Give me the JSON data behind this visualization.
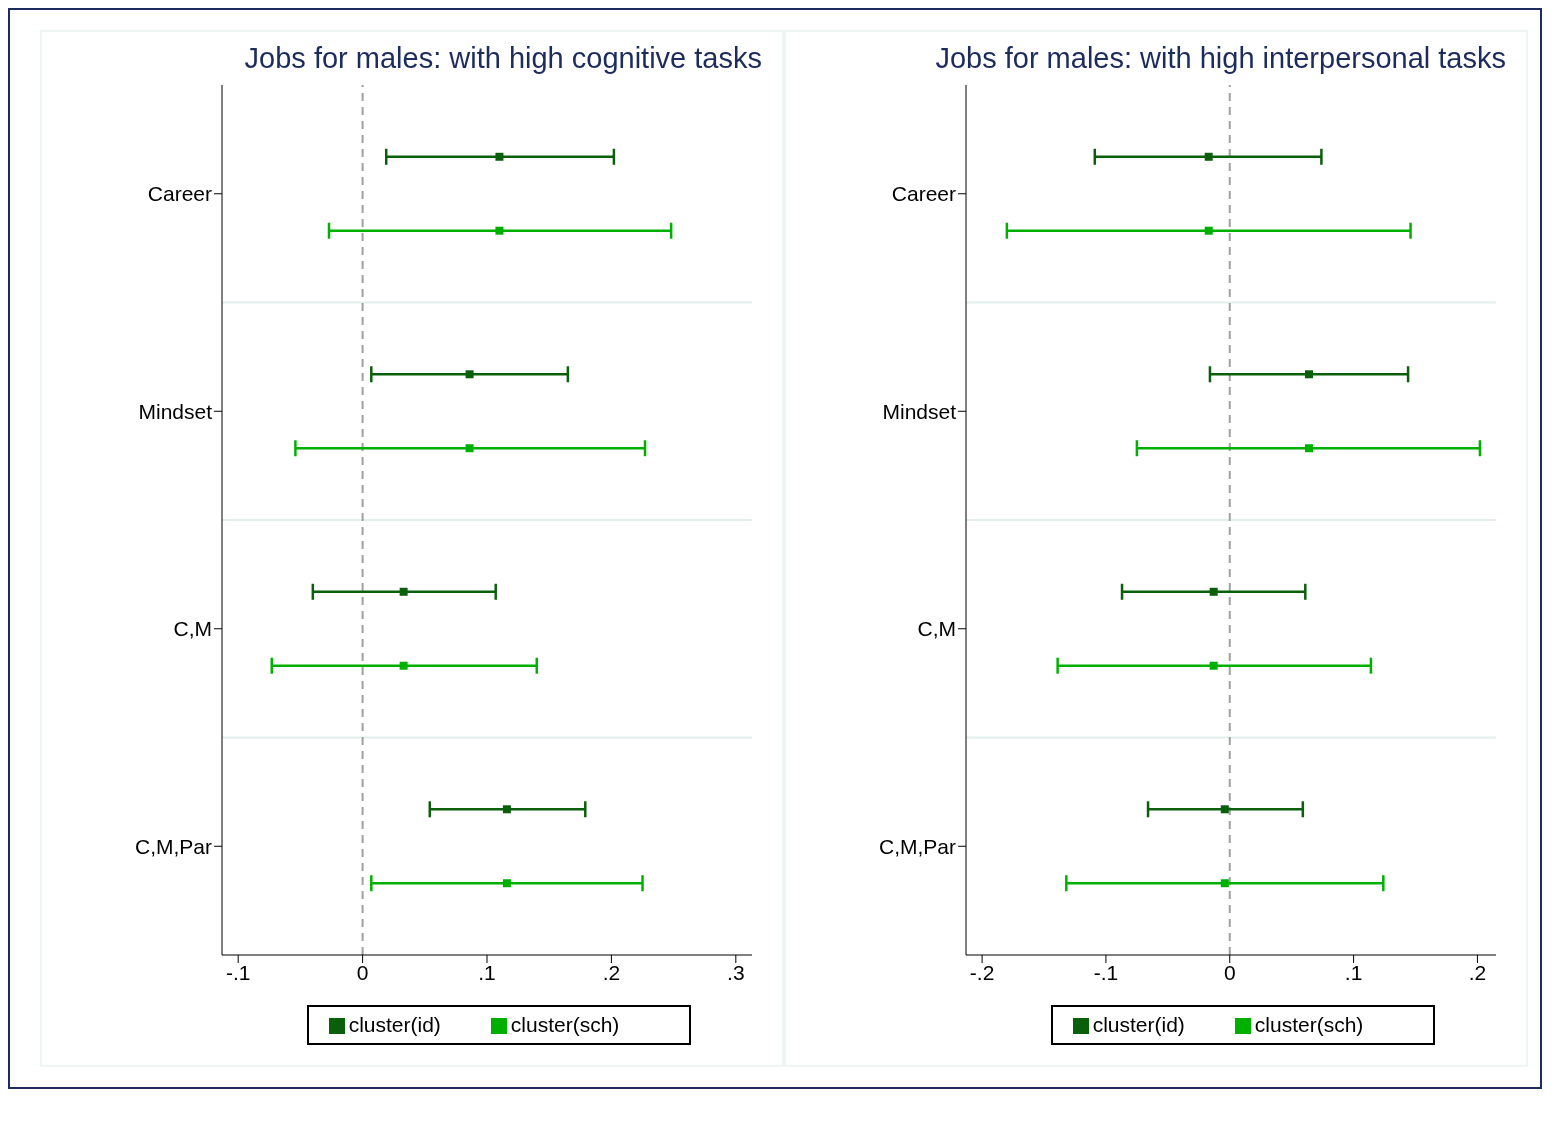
{
  "chart_data": [
    {
      "type": "scatter",
      "orientation": "horizontal",
      "title": "Jobs for males: with high cognitive tasks",
      "categories": [
        "Career",
        "Mindset",
        "C,M",
        "C,M,Par"
      ],
      "marker": "square",
      "legend": "bottom",
      "xlim": [
        -0.113,
        0.313
      ],
      "xticks": [
        {
          "value": -0.1,
          "label": "-.1"
        },
        0,
        {
          "value": 0.1,
          "label": ".1"
        },
        {
          "value": 0.2,
          "label": ".2"
        },
        {
          "value": 0.3,
          "label": ".3"
        }
      ],
      "ref_lines": [
        {
          "axis": "x",
          "value": 0,
          "color": "#a0a0a0",
          "line_style": "dashed"
        }
      ],
      "series": [
        {
          "name": "cluster(id)",
          "color": "#0a5f0a",
          "values": [
            0.11,
            0.086,
            0.033,
            0.116
          ],
          "errors": [
            [
              0.019,
              0.202
            ],
            [
              0.007,
              0.165
            ],
            [
              -0.04,
              0.107
            ],
            [
              0.054,
              0.179
            ]
          ]
        },
        {
          "name": "cluster(sch)",
          "color": "#00b000",
          "values": [
            0.11,
            0.086,
            0.033,
            0.116
          ],
          "errors": [
            [
              -0.027,
              0.248
            ],
            [
              -0.054,
              0.227
            ],
            [
              -0.073,
              0.14
            ],
            [
              0.007,
              0.225
            ]
          ]
        }
      ]
    },
    {
      "type": "scatter",
      "orientation": "horizontal",
      "title": "Jobs for males: with high interpersonal tasks",
      "categories": [
        "Career",
        "Mindset",
        "C,M",
        "C,M,Par"
      ],
      "marker": "square",
      "legend": "bottom",
      "xlim": [
        -0.213,
        0.215
      ],
      "xticks": [
        {
          "value": -0.2,
          "label": "-.2"
        },
        {
          "value": -0.1,
          "label": "-.1"
        },
        0,
        {
          "value": 0.1,
          "label": ".1"
        },
        {
          "value": 0.2,
          "label": ".2"
        }
      ],
      "ref_lines": [
        {
          "axis": "x",
          "value": 0,
          "color": "#a0a0a0",
          "line_style": "dashed"
        }
      ],
      "series": [
        {
          "name": "cluster(id)",
          "color": "#0a5f0a",
          "values": [
            -0.017,
            0.064,
            -0.013,
            -0.004
          ],
          "errors": [
            [
              -0.109,
              0.074
            ],
            [
              -0.016,
              0.144
            ],
            [
              -0.087,
              0.061
            ],
            [
              -0.066,
              0.059
            ]
          ]
        },
        {
          "name": "cluster(sch)",
          "color": "#00b000",
          "values": [
            -0.017,
            0.064,
            -0.013,
            -0.004
          ],
          "errors": [
            [
              -0.18,
              0.146
            ],
            [
              -0.075,
              0.202
            ],
            [
              -0.139,
              0.114
            ],
            [
              -0.132,
              0.124
            ]
          ]
        }
      ]
    }
  ]
}
